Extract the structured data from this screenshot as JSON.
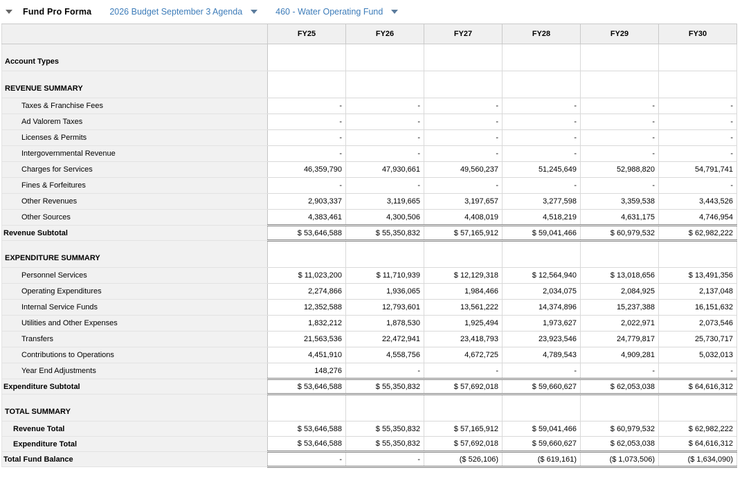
{
  "colors": {
    "link_blue": "#3d7cb9",
    "header_bg": "#f0f0f0",
    "label_column_bg": "#f1f1f1",
    "grid_border": "#d9d9d9",
    "double_border": "#7f7f7f"
  },
  "toolbar": {
    "collapse_icon": "triangle-down",
    "title": "Fund Pro Forma",
    "budget_dropdown": {
      "label": "2026 Budget September 3 Agenda",
      "icon": "triangle-down"
    },
    "fund_dropdown": {
      "label": "460 - Water Operating Fund",
      "icon": "triangle-down"
    }
  },
  "table": {
    "columns": [
      "FY25",
      "FY26",
      "FY27",
      "FY28",
      "FY29",
      "FY30"
    ],
    "rows": [
      {
        "type": "section",
        "label": "Account Types",
        "values": [
          "",
          "",
          "",
          "",
          "",
          ""
        ]
      },
      {
        "type": "section",
        "label": "REVENUE SUMMARY",
        "values": [
          "",
          "",
          "",
          "",
          "",
          ""
        ]
      },
      {
        "type": "detail",
        "label": "Taxes & Franchise Fees",
        "values": [
          "-",
          "-",
          "-",
          "-",
          "-",
          "-"
        ]
      },
      {
        "type": "detail",
        "label": "Ad Valorem Taxes",
        "values": [
          "-",
          "-",
          "-",
          "-",
          "-",
          "-"
        ]
      },
      {
        "type": "detail",
        "label": "Licenses & Permits",
        "values": [
          "-",
          "-",
          "-",
          "-",
          "-",
          "-"
        ]
      },
      {
        "type": "detail",
        "label": "Intergovernmental Revenue",
        "values": [
          "-",
          "-",
          "-",
          "-",
          "-",
          "-"
        ]
      },
      {
        "type": "detail",
        "label": "Charges for Services",
        "values": [
          "46,359,790",
          "47,930,661",
          "49,560,237",
          "51,245,649",
          "52,988,820",
          "54,791,741"
        ]
      },
      {
        "type": "detail",
        "label": "Fines & Forfeitures",
        "values": [
          "-",
          "-",
          "-",
          "-",
          "-",
          "-"
        ]
      },
      {
        "type": "detail",
        "label": "Other Revenues",
        "values": [
          "2,903,337",
          "3,119,665",
          "3,197,657",
          "3,277,598",
          "3,359,538",
          "3,443,526"
        ]
      },
      {
        "type": "detail",
        "label": "Other Sources",
        "values": [
          "4,383,461",
          "4,300,506",
          "4,408,019",
          "4,518,219",
          "4,631,175",
          "4,746,954"
        ]
      },
      {
        "type": "subtotal",
        "label": "Revenue Subtotal",
        "values": [
          "$ 53,646,588",
          "$ 55,350,832",
          "$ 57,165,912",
          "$ 59,041,466",
          "$ 60,979,532",
          "$ 62,982,222"
        ]
      },
      {
        "type": "section",
        "label": "EXPENDITURE SUMMARY",
        "values": [
          "",
          "",
          "",
          "",
          "",
          ""
        ]
      },
      {
        "type": "detail",
        "label": "Personnel Services",
        "values": [
          "$ 11,023,200",
          "$ 11,710,939",
          "$ 12,129,318",
          "$ 12,564,940",
          "$ 13,018,656",
          "$ 13,491,356"
        ]
      },
      {
        "type": "detail",
        "label": "Operating Expenditures",
        "values": [
          "2,274,866",
          "1,936,065",
          "1,984,466",
          "2,034,075",
          "2,084,925",
          "2,137,048"
        ]
      },
      {
        "type": "detail",
        "label": "Internal Service Funds",
        "values": [
          "12,352,588",
          "12,793,601",
          "13,561,222",
          "14,374,896",
          "15,237,388",
          "16,151,632"
        ]
      },
      {
        "type": "detail",
        "label": "Utilities and Other Expenses",
        "values": [
          "1,832,212",
          "1,878,530",
          "1,925,494",
          "1,973,627",
          "2,022,971",
          "2,073,546"
        ]
      },
      {
        "type": "detail",
        "label": "Transfers",
        "values": [
          "21,563,536",
          "22,472,941",
          "23,418,793",
          "23,923,546",
          "24,779,817",
          "25,730,717"
        ]
      },
      {
        "type": "detail",
        "label": "Contributions to Operations",
        "values": [
          "4,451,910",
          "4,558,756",
          "4,672,725",
          "4,789,543",
          "4,909,281",
          "5,032,013"
        ]
      },
      {
        "type": "detail",
        "label": "Year End Adjustments",
        "values": [
          "148,276",
          "-",
          "-",
          "-",
          "-",
          "-"
        ]
      },
      {
        "type": "subtotal",
        "label": "Expenditure Subtotal",
        "values": [
          "$ 53,646,588",
          "$ 55,350,832",
          "$ 57,692,018",
          "$ 59,660,627",
          "$ 62,053,038",
          "$ 64,616,312"
        ]
      },
      {
        "type": "section",
        "label": "TOTAL SUMMARY",
        "values": [
          "",
          "",
          "",
          "",
          "",
          ""
        ]
      },
      {
        "type": "total",
        "label": "Revenue Total",
        "values": [
          "$ 53,646,588",
          "$ 55,350,832",
          "$ 57,165,912",
          "$ 59,041,466",
          "$ 60,979,532",
          "$ 62,982,222"
        ]
      },
      {
        "type": "total",
        "label": "Expenditure Total",
        "double_bottom": true,
        "values": [
          "$ 53,646,588",
          "$ 55,350,832",
          "$ 57,692,018",
          "$ 59,660,627",
          "$ 62,053,038",
          "$ 64,616,312"
        ]
      },
      {
        "type": "grand",
        "label": "Total Fund Balance",
        "values": [
          "-",
          "-",
          "($ 526,106)",
          "($ 619,161)",
          "($ 1,073,506)",
          "($ 1,634,090)"
        ]
      }
    ]
  }
}
